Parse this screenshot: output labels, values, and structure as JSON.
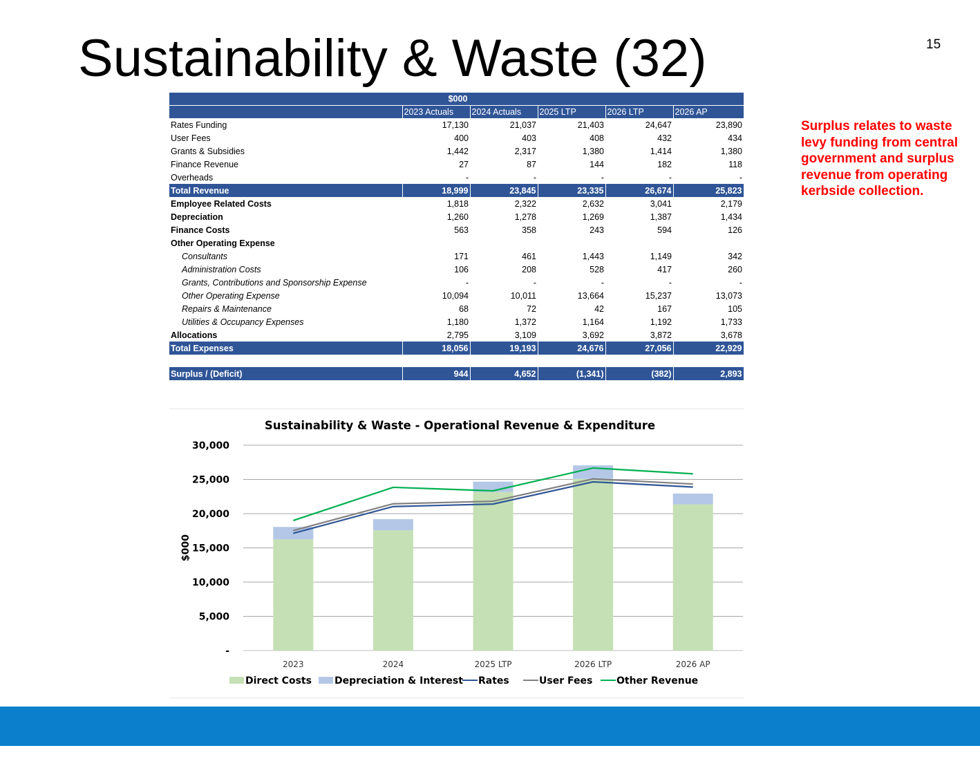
{
  "slide": {
    "title": "Sustainability & Waste (32)",
    "page_number": "15",
    "note": "Surplus relates to waste levy funding from central government and surplus revenue from operating kerbside collection."
  },
  "table": {
    "unit_header": "$000",
    "columns": [
      "2023 Actuals",
      "2024 Actuals",
      "2025 LTP",
      "2026 LTP",
      "2026 AP"
    ],
    "rows": [
      {
        "label": "Rates Funding",
        "values": [
          "17,130",
          "21,037",
          "21,403",
          "24,647",
          "23,890"
        ],
        "style": "normal"
      },
      {
        "label": "User Fees",
        "values": [
          "400",
          "403",
          "408",
          "432",
          "434"
        ],
        "style": "normal"
      },
      {
        "label": "Grants & Subsidies",
        "values": [
          "1,442",
          "2,317",
          "1,380",
          "1,414",
          "1,380"
        ],
        "style": "normal"
      },
      {
        "label": "Finance Revenue",
        "values": [
          "27",
          "87",
          "144",
          "182",
          "118"
        ],
        "style": "normal"
      },
      {
        "label": "Overheads",
        "values": [
          "-",
          "-",
          "-",
          "-",
          "-"
        ],
        "style": "normal"
      },
      {
        "label": "Total Revenue",
        "values": [
          "18,999",
          "23,845",
          "23,335",
          "26,674",
          "25,823"
        ],
        "style": "total"
      },
      {
        "label": "Employee Related Costs",
        "values": [
          "1,818",
          "2,322",
          "2,632",
          "3,041",
          "2,179"
        ],
        "style": "bold"
      },
      {
        "label": "Depreciation",
        "values": [
          "1,260",
          "1,278",
          "1,269",
          "1,387",
          "1,434"
        ],
        "style": "bold"
      },
      {
        "label": "Finance Costs",
        "values": [
          "563",
          "358",
          "243",
          "594",
          "126"
        ],
        "style": "bold"
      },
      {
        "label": "Other Operating  Expense",
        "values": [
          "",
          "",
          "",
          "",
          ""
        ],
        "style": "bold"
      },
      {
        "label": "Consultants",
        "values": [
          "171",
          "461",
          "1,443",
          "1,149",
          "342"
        ],
        "style": "sub"
      },
      {
        "label": "Administration Costs",
        "values": [
          "106",
          "208",
          "528",
          "417",
          "260"
        ],
        "style": "sub"
      },
      {
        "label": "Grants, Contributions and Sponsorship Expense",
        "values": [
          "-",
          "-",
          "-",
          "-",
          "-"
        ],
        "style": "sub"
      },
      {
        "label": "Other Operating Expense",
        "values": [
          "10,094",
          "10,011",
          "13,664",
          "15,237",
          "13,073"
        ],
        "style": "sub"
      },
      {
        "label": "Repairs & Maintenance",
        "values": [
          "68",
          "72",
          "42",
          "167",
          "105"
        ],
        "style": "sub"
      },
      {
        "label": "Utilities & Occupancy Expenses",
        "values": [
          "1,180",
          "1,372",
          "1,164",
          "1,192",
          "1,733"
        ],
        "style": "sub"
      },
      {
        "label": "Allocations",
        "values": [
          "2,795",
          "3,109",
          "3,692",
          "3,872",
          "3,678"
        ],
        "style": "bold"
      },
      {
        "label": "Total Expenses",
        "values": [
          "18,056",
          "19,193",
          "24,676",
          "27,056",
          "22,929"
        ],
        "style": "total"
      },
      {
        "label": "",
        "values": [
          "",
          "",
          "",
          "",
          ""
        ],
        "style": "spacer"
      },
      {
        "label": "Surplus / (Deficit)",
        "values": [
          "944",
          "4,652",
          "(1,341)",
          "(382)",
          "2,893"
        ],
        "style": "total"
      }
    ]
  },
  "chart_data": {
    "type": "bar",
    "title": "Sustainability & Waste - Operational Revenue & Expenditure",
    "xlabel": "",
    "ylabel": "$000",
    "ylim": [
      0,
      30000
    ],
    "yticks": [
      0,
      5000,
      10000,
      15000,
      20000,
      25000,
      30000
    ],
    "ytick_labels": [
      "-",
      "5,000",
      "10,000",
      "15,000",
      "20,000",
      "25,000",
      "30,000"
    ],
    "categories": [
      "2023",
      "2024",
      "2025 LTP",
      "2026 LTP",
      "2026 AP"
    ],
    "stacked": true,
    "grid": true,
    "legend_position": "bottom",
    "series": [
      {
        "name": "Direct Costs",
        "kind": "bar",
        "color": "#c5e0b4",
        "values": [
          16233,
          17557,
          23164,
          25075,
          21369
        ]
      },
      {
        "name": "Depreciation & Interest",
        "kind": "bar",
        "color": "#b4c7e7",
        "values": [
          1823,
          1636,
          1512,
          1981,
          1560
        ]
      },
      {
        "name": "Rates",
        "kind": "line",
        "color": "#2f5597",
        "values": [
          17130,
          21037,
          21403,
          24647,
          23890
        ]
      },
      {
        "name": "User Fees",
        "kind": "line",
        "color": "#808080",
        "values": [
          17530,
          21440,
          21811,
          25079,
          24324
        ]
      },
      {
        "name": "Other Revenue",
        "kind": "line",
        "color": "#00b050",
        "values": [
          18999,
          23845,
          23335,
          26674,
          25823
        ]
      }
    ]
  }
}
